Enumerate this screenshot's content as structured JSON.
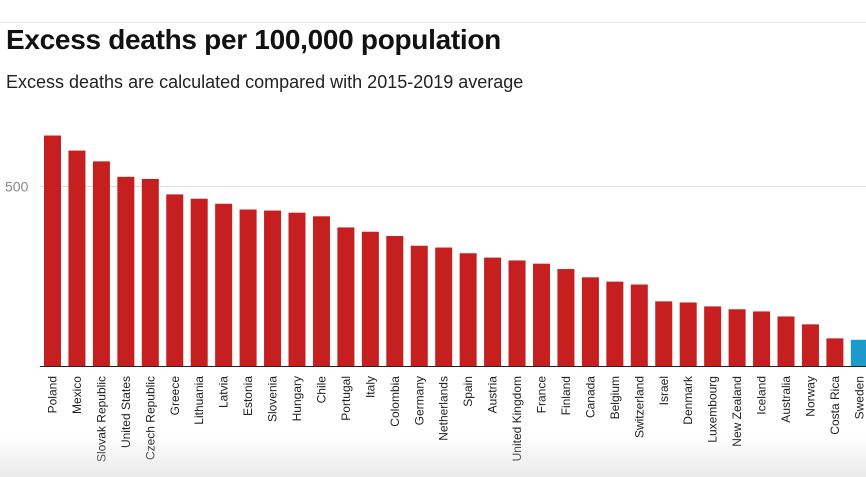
{
  "title": "Excess deaths per 100,000 population",
  "subtitle": "Excess deaths are calculated compared with 2015-2019 average",
  "colors": {
    "default_bar": "#c51f1f",
    "highlight_bar": "#1a9bcb",
    "gridline": "#dddddd",
    "axis": "#222222",
    "tick_text": "#888888",
    "label_text": "#222222"
  },
  "chart_data": {
    "type": "bar",
    "title": "Excess deaths per 100,000 population",
    "subtitle": "Excess deaths are calculated compared with 2015-2019 average",
    "xlabel": "",
    "ylabel": "",
    "ylim": [
      0,
      650
    ],
    "yticks": [
      500
    ],
    "grid": true,
    "highlight": "Sweden",
    "categories": [
      "Poland",
      "Mexico",
      "Slovak Republic",
      "United States",
      "Czech Republic",
      "Greece",
      "Lithuania",
      "Latvia",
      "Estonia",
      "Slovenia",
      "Hungary",
      "Chile",
      "Portugal",
      "Italy",
      "Colombia",
      "Germany",
      "Netherlands",
      "Spain",
      "Austria",
      "United Kingdom",
      "France",
      "Finland",
      "Canada",
      "Belgium",
      "Switzerland",
      "Israel",
      "Denmark",
      "Luxembourg",
      "New Zealand",
      "Iceland",
      "Australia",
      "Norway",
      "Costa Rica",
      "Sweden"
    ],
    "values": [
      642,
      600,
      570,
      527,
      521,
      478,
      466,
      452,
      436,
      433,
      427,
      417,
      386,
      374,
      362,
      335,
      330,
      314,
      302,
      294,
      285,
      270,
      247,
      235,
      227,
      180,
      177,
      166,
      158,
      152,
      138,
      116,
      77,
      73
    ]
  }
}
